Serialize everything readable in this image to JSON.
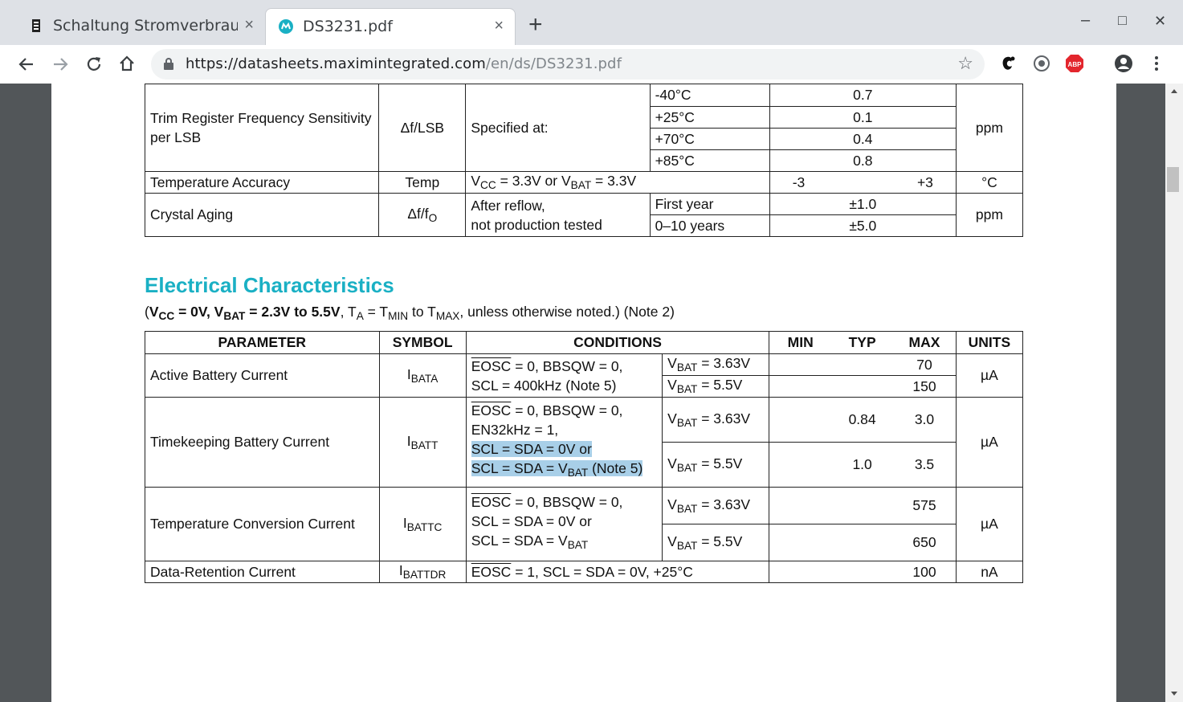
{
  "browser": {
    "tabs": [
      {
        "title": "Schaltung Stromverbrauch",
        "close": "×"
      },
      {
        "title": "DS3231.pdf",
        "close": "×"
      }
    ],
    "new_tab": "+",
    "window": {
      "minimize": "–",
      "maximize": "□",
      "close": "✕"
    },
    "url_host": "https://datasheets.maximintegrated.com",
    "url_path": "/en/ds/DS3231.pdf",
    "ext_abp": "ABP"
  },
  "top_table": {
    "trim": {
      "param": "Trim Register Frequency Sensitivity per LSB",
      "symbol": "Δf/LSB",
      "cond": "Specified at:",
      "rows": [
        {
          "t": "-40°C",
          "v": "0.7"
        },
        {
          "t": "+25°C",
          "v": "0.1"
        },
        {
          "t": "+70°C",
          "v": "0.4"
        },
        {
          "t": "+85°C",
          "v": "0.8"
        }
      ],
      "unit": "ppm"
    },
    "temp": {
      "param": "Temperature Accuracy",
      "symbol": "Temp",
      "min": "-3",
      "max": "+3",
      "unit": "°C"
    },
    "aging": {
      "param": "Crystal Aging",
      "cond1": "After reflow,",
      "cond2": "not production tested",
      "r1c": "First year",
      "r1v": "±1.0",
      "r2c": "0–10 years",
      "r2v": "±5.0",
      "unit": "ppm"
    }
  },
  "ec": {
    "title": "Electrical Characteristics",
    "headers": {
      "param": "PARAMETER",
      "symbol": "SYMBOL",
      "conditions": "CONDITIONS",
      "min": "MIN",
      "typ": "TYP",
      "max": "MAX",
      "units": "UNITS"
    },
    "active": {
      "param": "Active Battery Current",
      "line2": "SCL = 400kHz (Note 5)",
      "max1": "70",
      "max2": "150",
      "unit": "µA"
    },
    "timekeeping": {
      "param": "Timekeeping Battery Current",
      "line2": "EN32kHz = 1,",
      "line3": "SCL = SDA = 0V or",
      "typ1": "0.84",
      "max1": "3.0",
      "typ2": "1.0",
      "max2": "3.5",
      "unit": "µA"
    },
    "tempconv": {
      "param": "Temperature Conversion Current",
      "line2": "SCL = SDA = 0V or",
      "max1": "575",
      "max2": "650",
      "unit": "µA"
    },
    "retention": {
      "param": "Data-Retention Current",
      "max": "100",
      "unit": "nA"
    }
  }
}
